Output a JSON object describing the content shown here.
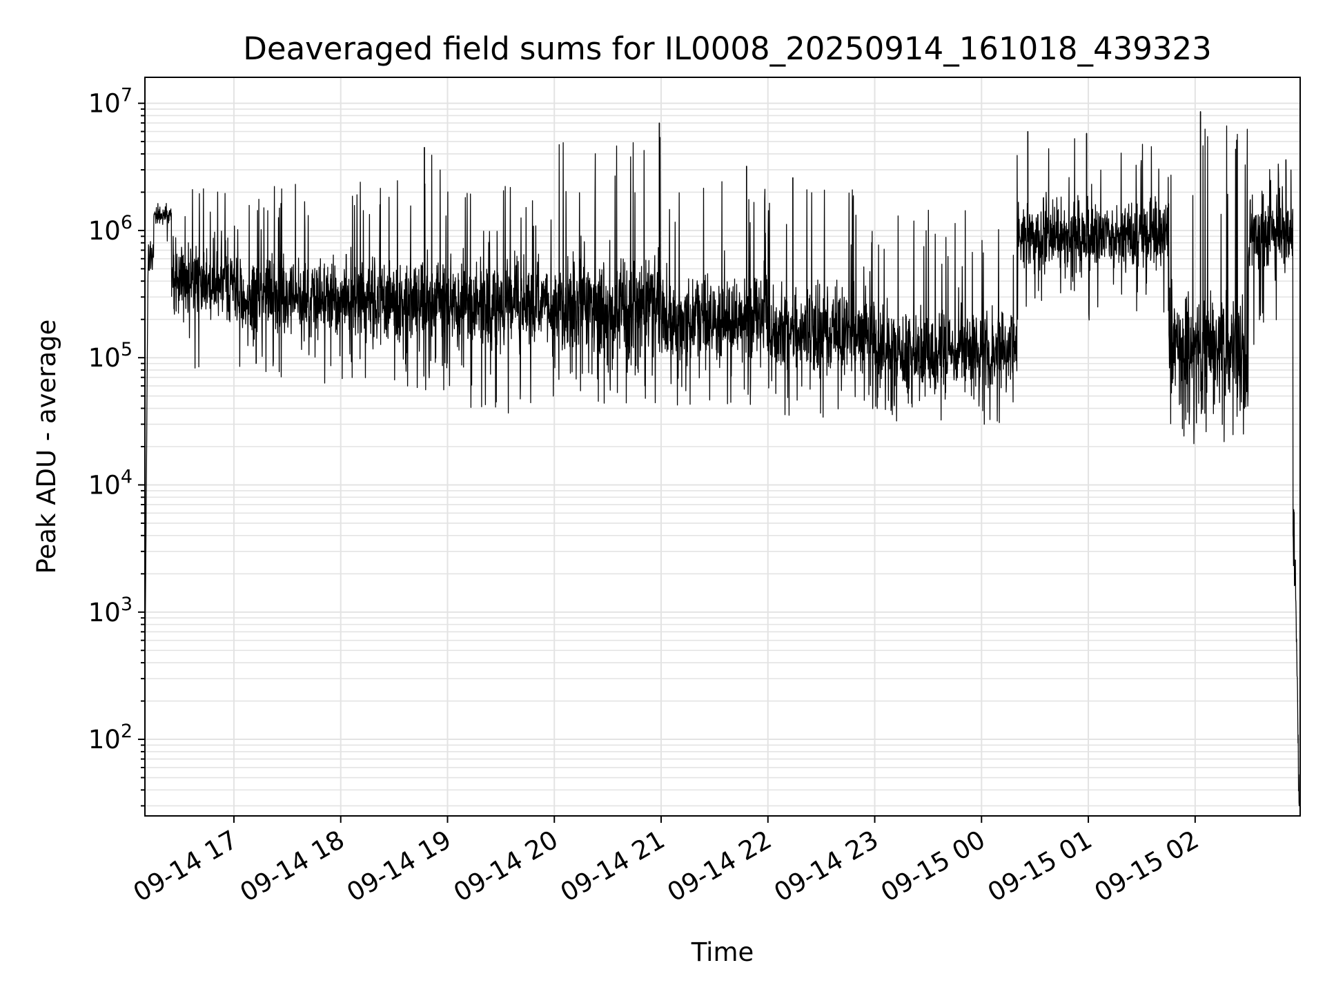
{
  "chart_data": {
    "type": "line",
    "title": "Deaveraged field sums for IL0008_20250914_161018_439323",
    "xlabel": "Time",
    "ylabel": "Peak ADU - average",
    "x_axis": {
      "kind": "time",
      "start": "2025-09-14 16:10",
      "end": "2025-09-15 02:59",
      "tick_labels": [
        "09-14 17",
        "09-14 18",
        "09-14 19",
        "09-14 20",
        "09-14 21",
        "09-14 22",
        "09-14 23",
        "09-15 00",
        "09-15 01",
        "09-15 02"
      ],
      "tick_values": [
        "2025-09-14 17:00",
        "2025-09-14 18:00",
        "2025-09-14 19:00",
        "2025-09-14 20:00",
        "2025-09-14 21:00",
        "2025-09-14 22:00",
        "2025-09-14 23:00",
        "2025-09-15 00:00",
        "2025-09-15 01:00",
        "2025-09-15 02:00"
      ],
      "tick_label_rotation": "30 degrees"
    },
    "y_axis": {
      "scale": "log",
      "ylim": [
        25,
        16000000
      ],
      "tick_values": [
        100,
        1000,
        10000,
        100000,
        1000000,
        10000000
      ],
      "tick_labels": [
        {
          "base": "10",
          "exp": "2"
        },
        {
          "base": "10",
          "exp": "3"
        },
        {
          "base": "10",
          "exp": "4"
        },
        {
          "base": "10",
          "exp": "5"
        },
        {
          "base": "10",
          "exp": "6"
        },
        {
          "base": "10",
          "exp": "7"
        }
      ]
    },
    "grid": "on (major and minor)",
    "legend": "none",
    "series": [
      {
        "line_color": "#000000",
        "segments": [
          {
            "start": "2025-09-14 16:10",
            "end": "2025-09-14 16:15",
            "min": 300,
            "max": 1600000,
            "median": 600000
          },
          {
            "start": "2025-09-14 16:15",
            "end": "2025-09-14 16:25",
            "min": 800000,
            "max": 1700000,
            "median": 1300000
          },
          {
            "start": "2025-09-14 16:25",
            "end": "2025-09-14 17:00",
            "min": 75000,
            "max": 2500000,
            "median": 400000
          },
          {
            "start": "2025-09-14 17:00",
            "end": "2025-09-14 18:00",
            "min": 55000,
            "max": 2600000,
            "median": 300000
          },
          {
            "start": "2025-09-14 18:00",
            "end": "2025-09-14 19:00",
            "min": 50000,
            "max": 4500000,
            "median": 280000
          },
          {
            "start": "2025-09-14 19:00",
            "end": "2025-09-14 20:00",
            "min": 33000,
            "max": 2700000,
            "median": 260000
          },
          {
            "start": "2025-09-14 20:00",
            "end": "2025-09-14 21:00",
            "min": 40000,
            "max": 7000000,
            "median": 250000
          },
          {
            "start": "2025-09-14 21:00",
            "end": "2025-09-14 22:00",
            "min": 37000,
            "max": 3200000,
            "median": 200000
          },
          {
            "start": "2025-09-14 22:00",
            "end": "2025-09-14 23:00",
            "min": 30000,
            "max": 2600000,
            "median": 160000
          },
          {
            "start": "2025-09-14 23:00",
            "end": "2025-09-15 00:20",
            "min": 27000,
            "max": 1800000,
            "median": 110000
          },
          {
            "start": "2025-09-15 00:20",
            "end": "2025-09-15 01:45",
            "min": 180000,
            "max": 6000000,
            "median": 900000
          },
          {
            "start": "2025-09-15 01:45",
            "end": "2025-09-15 02:30",
            "min": 19000,
            "max": 8600000,
            "median": 120000
          },
          {
            "start": "2025-09-15 02:30",
            "end": "2025-09-15 02:55",
            "min": 110000,
            "max": 3600000,
            "median": 900000
          },
          {
            "start": "2025-09-15 02:55",
            "end": "2025-09-15 02:59",
            "min": 30,
            "max": 600000,
            "median": 5000
          }
        ],
        "peaks": [
          {
            "time": "2025-09-14 18:47",
            "value": 4500000
          },
          {
            "time": "2025-09-14 20:59",
            "value": 7000000
          },
          {
            "time": "2025-09-14 21:48",
            "value": 3200000
          },
          {
            "time": "2025-09-14 22:14",
            "value": 2600000
          },
          {
            "time": "2025-09-15 00:26",
            "value": 6000000
          },
          {
            "time": "2025-09-15 00:59",
            "value": 5800000
          },
          {
            "time": "2025-09-15 02:03",
            "value": 8600000
          },
          {
            "time": "2025-09-15 02:51",
            "value": 3600000
          }
        ]
      }
    ]
  }
}
